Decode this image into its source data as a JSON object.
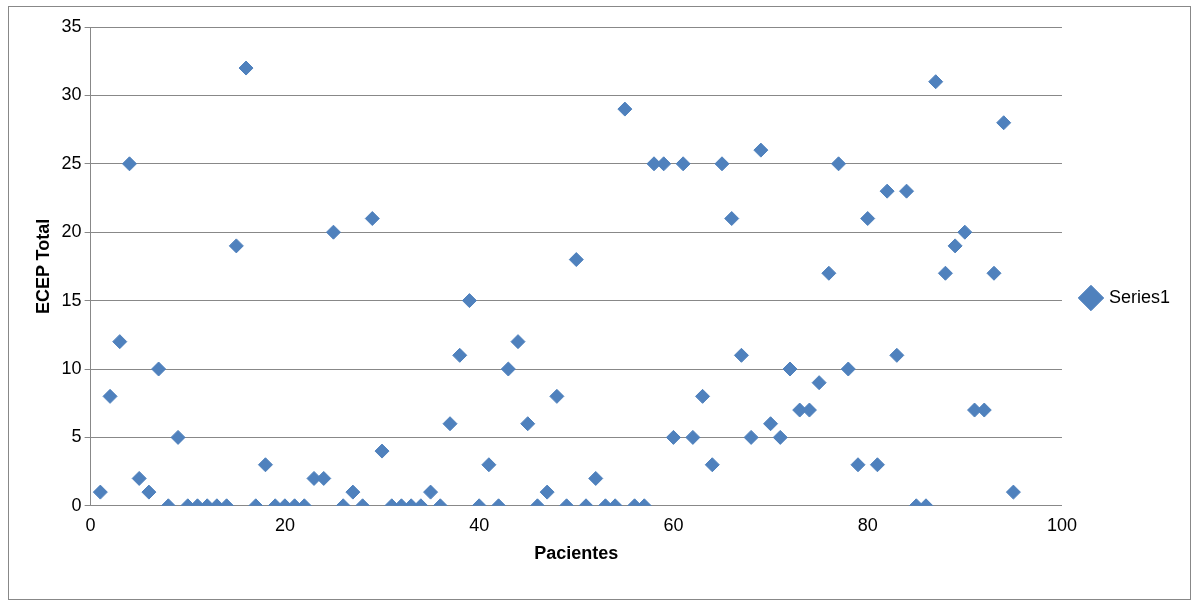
{
  "chart_data": {
    "type": "scatter",
    "xlabel": "Pacientes",
    "ylabel": "ECEP Total",
    "x": [
      1,
      2,
      3,
      4,
      5,
      6,
      7,
      8,
      9,
      10,
      11,
      12,
      13,
      14,
      15,
      16,
      17,
      18,
      19,
      20,
      21,
      22,
      23,
      24,
      25,
      26,
      27,
      28,
      29,
      30,
      31,
      32,
      33,
      34,
      35,
      36,
      37,
      38,
      39,
      40,
      41,
      42,
      43,
      44,
      45,
      46,
      47,
      48,
      49,
      50,
      51,
      52,
      53,
      54,
      55,
      56,
      57,
      58,
      59,
      60,
      61,
      62,
      63,
      64,
      65,
      66,
      67,
      68,
      69,
      70,
      71,
      72,
      73,
      74,
      75,
      76,
      77,
      78,
      79,
      80,
      81,
      82,
      83,
      84,
      85,
      86,
      87,
      88,
      89,
      90,
      91,
      92,
      93,
      94,
      95
    ],
    "series": [
      {
        "name": "Series1",
        "color": "#4f81bd",
        "values": [
          1,
          8,
          12,
          25,
          2,
          1,
          10,
          0,
          5,
          0,
          0,
          0,
          0,
          0,
          19,
          32,
          0,
          3,
          0,
          0,
          0,
          0,
          2,
          2,
          20,
          0,
          1,
          0,
          21,
          4,
          0,
          0,
          0,
          0,
          1,
          0,
          6,
          11,
          15,
          0,
          3,
          0,
          10,
          12,
          6,
          0,
          1,
          8,
          0,
          18,
          0,
          2,
          0,
          0,
          29,
          0,
          0,
          25,
          25,
          5,
          25,
          5,
          8,
          3,
          25,
          21,
          11,
          5,
          26,
          6,
          5,
          10,
          7,
          7,
          9,
          17,
          25,
          10,
          3,
          21,
          3,
          23,
          11,
          23,
          0,
          0,
          31,
          17,
          19,
          20,
          7,
          7,
          17,
          28,
          1
        ]
      }
    ],
    "xlim": [
      0,
      100
    ],
    "xticks": [
      0,
      20,
      40,
      60,
      80,
      100
    ],
    "ylim": [
      0,
      35
    ],
    "yticks": [
      0,
      5,
      10,
      15,
      20,
      25,
      30,
      35
    ],
    "grid": "y",
    "legend": "right",
    "marker": "diamond"
  }
}
